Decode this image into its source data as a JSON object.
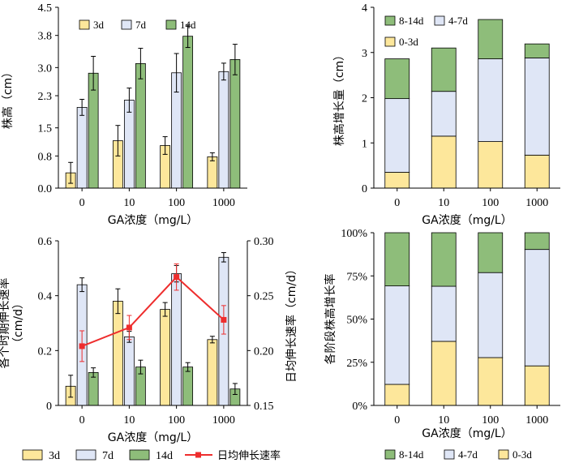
{
  "colors": {
    "d3": "#fde79b",
    "d7": "#dfe6f6",
    "d14": "#8ebd7a",
    "daily": "#ee2d2d",
    "axis": "#000000"
  },
  "legend_bottom": {
    "labels": [
      "3d",
      "7d",
      "14d",
      "日均伸长速率"
    ]
  },
  "chart_data": [
    {
      "id": "height",
      "type": "bar",
      "title": "",
      "xlabel": "GA浓度（mg/L）",
      "ylabel": "株高（cm）",
      "categories": [
        "0",
        "10",
        "100",
        "1000"
      ],
      "ylim": [
        0,
        4.5
      ],
      "yticks": [
        "0.0",
        "0.8",
        "1.5",
        "2.3",
        "3.0",
        "3.8",
        "4.5"
      ],
      "legend": [
        "3d",
        "7d",
        "14d"
      ],
      "series": [
        {
          "name": "3d",
          "values": [
            0.38,
            1.18,
            1.06,
            0.78
          ],
          "errors": [
            0.26,
            0.38,
            0.22,
            0.1
          ]
        },
        {
          "name": "7d",
          "values": [
            2.01,
            2.19,
            2.87,
            2.9
          ],
          "errors": [
            0.2,
            0.3,
            0.48,
            0.21
          ]
        },
        {
          "name": "14d",
          "values": [
            2.86,
            3.1,
            3.78,
            3.2
          ],
          "errors": [
            0.42,
            0.38,
            0.28,
            0.38
          ]
        }
      ]
    },
    {
      "id": "increment",
      "type": "bar",
      "stacked": true,
      "title": "",
      "xlabel": "GA浓度（mg/L）",
      "ylabel": "株高增长量（cm）",
      "categories": [
        "0",
        "10",
        "100",
        "1000"
      ],
      "ylim": [
        0,
        4
      ],
      "yticks": [
        "0",
        "1",
        "2",
        "3",
        "4"
      ],
      "legend": [
        "8-14d",
        "4-7d",
        "0-3d"
      ],
      "series": [
        {
          "name": "0-3d",
          "values": [
            0.35,
            1.15,
            1.03,
            0.73
          ]
        },
        {
          "name": "4-7d",
          "values": [
            1.63,
            0.99,
            1.83,
            2.15
          ]
        },
        {
          "name": "8-14d",
          "values": [
            0.88,
            0.96,
            0.87,
            0.31
          ]
        }
      ]
    },
    {
      "id": "rate",
      "type": "bar",
      "title": "",
      "xlabel": "GA浓度（mg/L）",
      "ylabel": "各个时期伸长速率（cm/d）",
      "y2label": "日均伸长速率（cm/d）",
      "categories": [
        "0",
        "10",
        "100",
        "1000"
      ],
      "ylim": [
        0,
        0.6
      ],
      "yticks": [
        "0",
        "0.2",
        "0.4",
        "0.6"
      ],
      "y2lim": [
        0.15,
        0.3
      ],
      "y2ticks": [
        "0.15",
        "0.20",
        "0.25",
        "0.30"
      ],
      "series": [
        {
          "name": "3d",
          "values": [
            0.07,
            0.38,
            0.35,
            0.24
          ],
          "errors": [
            0.04,
            0.045,
            0.025,
            0.012
          ]
        },
        {
          "name": "7d",
          "values": [
            0.44,
            0.25,
            0.48,
            0.54
          ],
          "errors": [
            0.025,
            0.02,
            0.03,
            0.017
          ]
        },
        {
          "name": "14d",
          "values": [
            0.12,
            0.14,
            0.14,
            0.06
          ],
          "errors": [
            0.017,
            0.025,
            0.016,
            0.02
          ]
        },
        {
          "name": "日均伸长速率",
          "type": "line",
          "axis": "right",
          "values": [
            0.204,
            0.221,
            0.267,
            0.228
          ],
          "errors": [
            0.014,
            0.011,
            0.012,
            0.013
          ]
        }
      ]
    },
    {
      "id": "percent",
      "type": "bar",
      "stacked": true,
      "percent": true,
      "title": "",
      "xlabel": "GA浓度（mg/L）",
      "ylabel": "各阶段株高增长率",
      "categories": [
        "0",
        "10",
        "100",
        "1000"
      ],
      "ylim": [
        0,
        100
      ],
      "yticks": [
        "0%",
        "25%",
        "50%",
        "75%",
        "100%"
      ],
      "legend": [
        "8-14d",
        "4-7d",
        "0-3d"
      ],
      "series": [
        {
          "name": "0-3d",
          "values": [
            12.2,
            37.1,
            27.7,
            22.9
          ]
        },
        {
          "name": "4-7d",
          "values": [
            57.0,
            31.9,
            49.2,
            67.4
          ]
        },
        {
          "name": "8-14d",
          "values": [
            30.8,
            31.0,
            23.1,
            9.7
          ]
        }
      ]
    }
  ]
}
